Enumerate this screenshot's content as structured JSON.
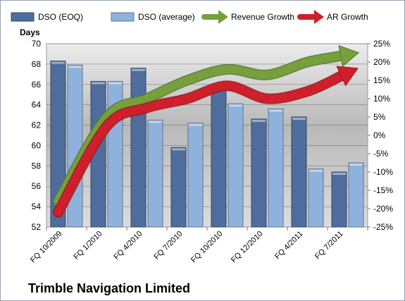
{
  "chart_data": {
    "type": "bar",
    "title": "Trimble Navigation Limited",
    "ylabel": "Days",
    "categories": [
      "FQ 10/2009",
      "FQ 1/2010",
      "FQ 4/2010",
      "FQ 7/2010",
      "FQ 10/2010",
      "FQ 12/2010",
      "FQ 4/2011",
      "FQ 7/2011"
    ],
    "ylim": [
      52,
      70
    ],
    "y_ticks": [
      "52",
      "54",
      "56",
      "58",
      "60",
      "62",
      "64",
      "66",
      "68",
      "70"
    ],
    "y2lim": [
      -0.25,
      0.25
    ],
    "y2_ticks": [
      "-25%",
      "-20%",
      "-15%",
      "-10%",
      "-5%",
      "0%",
      "5%",
      "10%",
      "15%",
      "20%",
      "25%"
    ],
    "grid": true,
    "legend_position": "top",
    "series": [
      {
        "name": "DSO (EOQ)",
        "type": "bar",
        "axis": "left",
        "color": "#4f6d9c",
        "values": [
          68.3,
          66.3,
          67.6,
          59.8,
          65.7,
          62.6,
          62.8,
          57.4
        ]
      },
      {
        "name": "DSO (average)",
        "type": "bar",
        "axis": "left",
        "color": "#8fb2dc",
        "values": [
          67.9,
          66.3,
          62.5,
          62.2,
          64.1,
          63.6,
          57.7,
          58.3
        ]
      },
      {
        "name": "Revenue Growth",
        "type": "arrow-line",
        "axis": "right",
        "color": "#76a03c",
        "values": [
          -0.18,
          0.05,
          0.1,
          0.15,
          0.18,
          0.165,
          0.2,
          0.22
        ]
      },
      {
        "name": "AR Growth",
        "type": "arrow-line",
        "axis": "right",
        "color": "#cf1f2a",
        "values": [
          -0.21,
          0.025,
          0.075,
          0.1,
          0.135,
          0.1,
          0.12,
          0.17
        ]
      }
    ]
  }
}
